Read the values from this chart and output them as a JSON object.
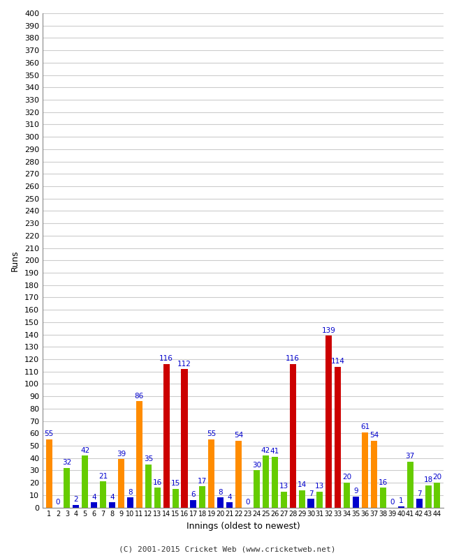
{
  "innings": [
    1,
    2,
    3,
    4,
    5,
    6,
    7,
    8,
    9,
    10,
    11,
    12,
    13,
    14,
    15,
    16,
    17,
    18,
    19,
    20,
    21,
    22,
    23,
    24,
    25,
    26,
    27,
    28,
    29,
    30,
    31,
    32,
    33,
    34,
    35,
    36,
    37,
    38,
    39,
    40,
    41,
    42,
    43,
    44
  ],
  "values": [
    55,
    0,
    32,
    2,
    42,
    4,
    21,
    4,
    39,
    8,
    86,
    35,
    16,
    116,
    15,
    112,
    6,
    17,
    55,
    8,
    4,
    54,
    0,
    30,
    42,
    41,
    13,
    116,
    14,
    7,
    13,
    139,
    114,
    20,
    9,
    61,
    54,
    16,
    0,
    1,
    37,
    7,
    18,
    20
  ],
  "colors": [
    "orange",
    "blue",
    "green",
    "blue",
    "green",
    "blue",
    "green",
    "blue",
    "orange",
    "blue",
    "orange",
    "green",
    "green",
    "red",
    "green",
    "red",
    "blue",
    "green",
    "orange",
    "blue",
    "blue",
    "orange",
    "blue",
    "green",
    "green",
    "green",
    "green",
    "red",
    "green",
    "blue",
    "green",
    "red",
    "red",
    "green",
    "blue",
    "orange",
    "orange",
    "green",
    "blue",
    "blue",
    "green",
    "blue",
    "green",
    "green"
  ],
  "ylabel": "Runs",
  "xlabel": "Innings (oldest to newest)",
  "title": "",
  "yticks": [
    0,
    10,
    20,
    30,
    40,
    50,
    60,
    70,
    80,
    90,
    100,
    110,
    120,
    130,
    140,
    150,
    160,
    170,
    180,
    190,
    200,
    210,
    220,
    230,
    240,
    250,
    260,
    270,
    280,
    290,
    300,
    310,
    320,
    330,
    340,
    350,
    360,
    370,
    380,
    390,
    400
  ],
  "ymax": 400,
  "footer": "(C) 2001-2015 Cricket Web (www.cricketweb.net)",
  "bg_color": "#ffffff",
  "grid_color": "#cccccc",
  "bar_orange": "#ff8c00",
  "bar_green": "#66cc00",
  "bar_red": "#cc0000",
  "bar_blue": "#0000cc",
  "label_color": "#0000cc",
  "label_fontsize": 7.5
}
